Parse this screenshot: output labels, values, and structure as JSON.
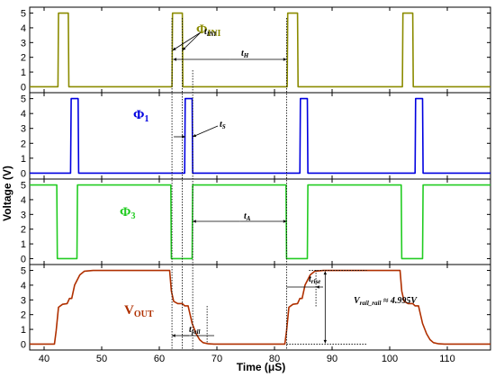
{
  "chart_data": {
    "type": "line",
    "xlabel": "Time (μS)",
    "ylabel": "Voltage (V)",
    "xlim": [
      37.5,
      117.5
    ],
    "xticks": [
      40,
      50,
      60,
      70,
      80,
      90,
      100,
      110
    ],
    "panels": [
      {
        "name": "Φ_INI",
        "label_main": "Φ",
        "label_sub": "INI",
        "color": "#8b8b00",
        "ylim": [
          -0.4,
          5.4
        ],
        "yticks": [
          0,
          1,
          2,
          3,
          4,
          5
        ],
        "x": [
          37.5,
          42.4,
          42.5,
          44.2,
          44.3,
          62.2,
          62.3,
          64.0,
          64.1,
          82.2,
          82.3,
          84.0,
          84.1,
          102.2,
          102.3,
          104.0,
          104.1,
          117.5
        ],
        "y": [
          0,
          0,
          5,
          5,
          0,
          0,
          5,
          5,
          0,
          0,
          5,
          5,
          0,
          0,
          5,
          5,
          0,
          0
        ]
      },
      {
        "name": "Φ_1",
        "label_main": "Φ",
        "label_sub": "1",
        "color": "#0000e0",
        "ylim": [
          -0.4,
          5.4
        ],
        "yticks": [
          0,
          1,
          2,
          3,
          4,
          5
        ],
        "x": [
          37.5,
          44.6,
          44.7,
          45.9,
          46.0,
          64.4,
          64.5,
          65.7,
          65.8,
          84.4,
          84.5,
          85.7,
          85.8,
          104.4,
          104.5,
          105.7,
          105.8,
          117.5
        ],
        "y": [
          0,
          0,
          5,
          5,
          0,
          0,
          5,
          5,
          0,
          0,
          5,
          5,
          0,
          0,
          5,
          5,
          0,
          0
        ]
      },
      {
        "name": "Φ_3",
        "label_main": "Φ",
        "label_sub": "3",
        "color": "#22cc22",
        "ylim": [
          -0.4,
          5.4
        ],
        "yticks": [
          0,
          1,
          2,
          3,
          4,
          5
        ],
        "x": [
          37.5,
          42.2,
          42.3,
          45.7,
          45.8,
          62.0,
          62.1,
          65.7,
          65.8,
          82.0,
          82.1,
          85.7,
          85.8,
          102.0,
          102.1,
          105.7,
          105.8,
          117.5
        ],
        "y": [
          5,
          5,
          0,
          0,
          5,
          5,
          0,
          0,
          5,
          5,
          0,
          0,
          5,
          5,
          0,
          0,
          5,
          5
        ]
      },
      {
        "name": "V_OUT",
        "label_main": "V",
        "label_sub": "OUT",
        "color": "#b03000",
        "ylim": [
          -0.4,
          5.4
        ],
        "yticks": [
          0,
          1,
          2,
          3,
          4,
          5
        ],
        "x": [
          37.5,
          41.8,
          42.1,
          42.5,
          43.2,
          44.0,
          44.4,
          44.8,
          45.3,
          46.2,
          47.0,
          48.5,
          61.8,
          62.1,
          62.5,
          63.2,
          64.0,
          64.4,
          65.0,
          65.7,
          66.4,
          67.0,
          67.6,
          68.5,
          69.5,
          81.8,
          82.1,
          82.5,
          83.2,
          84.0,
          84.4,
          84.8,
          85.3,
          86.2,
          87.0,
          88.5,
          101.8,
          102.1,
          102.5,
          103.2,
          104.0,
          104.4,
          105.0,
          105.7,
          106.4,
          107.0,
          107.6,
          108.5,
          109.5,
          117.5
        ],
        "y": [
          0,
          0,
          0.9,
          2.5,
          2.7,
          2.75,
          3.1,
          3.1,
          4.0,
          4.7,
          4.95,
          5.0,
          5.0,
          3.6,
          2.9,
          2.75,
          2.75,
          2.6,
          2.6,
          1.4,
          0.7,
          0.3,
          0.1,
          0.02,
          0,
          0,
          0.9,
          2.5,
          2.7,
          2.75,
          3.1,
          3.1,
          4.0,
          4.7,
          4.95,
          5.0,
          5.0,
          3.6,
          2.9,
          2.75,
          2.75,
          2.6,
          2.6,
          1.4,
          0.7,
          0.3,
          0.1,
          0.02,
          0,
          0
        ]
      }
    ],
    "annotations": {
      "t_ini": {
        "main": "t",
        "sub": "INI",
        "panel": 0
      },
      "t_h": {
        "main": "t",
        "sub": "H",
        "panel": 0,
        "x": [
          62.4,
          82.1
        ]
      },
      "t_s": {
        "main": "t",
        "sub": "S",
        "panel": 1
      },
      "t_a": {
        "main": "t",
        "sub": "A",
        "panel": 2,
        "x": [
          65.8,
          82.1
        ]
      },
      "t_fall": {
        "main": "t",
        "sub": "fall",
        "panel": 3
      },
      "t_rise": {
        "main": "t",
        "sub": "rise",
        "panel": 3
      },
      "v_rail": {
        "main": "V",
        "sub": "rail_rail",
        "suffix": " ≈ 4.995V",
        "panel": 3
      }
    }
  }
}
